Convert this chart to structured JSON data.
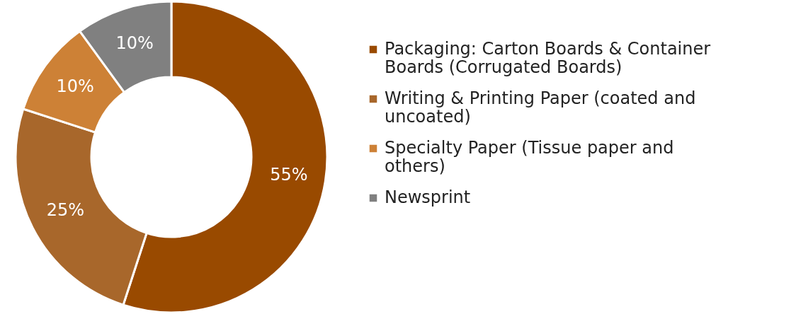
{
  "chart_data": {
    "type": "donut",
    "categories": [
      "Packaging: Carton Boards & Container Boards (Corrugated Boards)",
      "Writing & Printing Paper (coated and uncoated)",
      "Specialty Paper (Tissue paper and others)",
      "Newsprint"
    ],
    "values": [
      55,
      25,
      10,
      10
    ],
    "colors": [
      "#994a00",
      "#a8672b",
      "#cd8136",
      "#808080"
    ],
    "value_labels": [
      "55%",
      "25%",
      "10%",
      "10%"
    ],
    "legend": "right"
  }
}
